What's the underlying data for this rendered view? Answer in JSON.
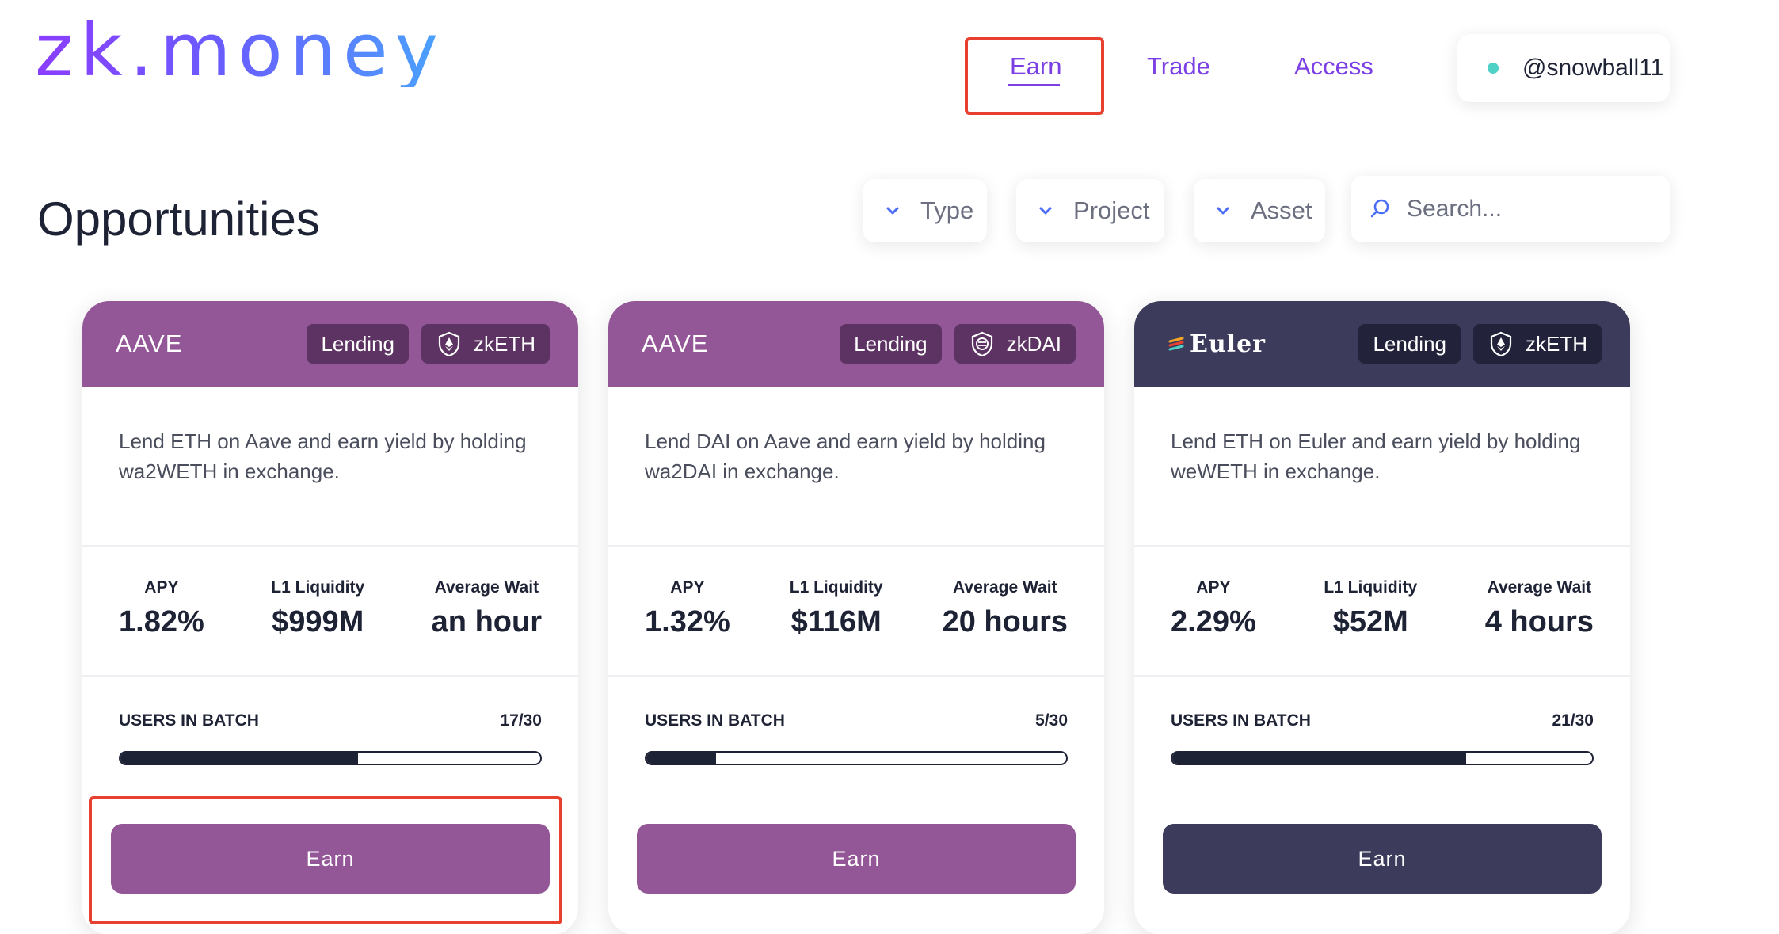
{
  "header": {
    "logo": "zk.money",
    "nav": [
      {
        "label": "Earn",
        "active": true
      },
      {
        "label": "Trade",
        "active": false
      },
      {
        "label": "Access",
        "active": false
      }
    ],
    "user": {
      "name": "@snowball11",
      "status_color": "#4fd1c5"
    }
  },
  "page": {
    "title": "Opportunities",
    "filters": [
      "Type",
      "Project",
      "Asset"
    ],
    "search_placeholder": "Search..."
  },
  "colors": {
    "accent": "#7b3fe4",
    "aave": "#935697",
    "euler": "#3c3b5b",
    "tag_bg": "#3a2540",
    "highlight": "#e8402e"
  },
  "cards": [
    {
      "brand": "AAVE",
      "brand_icon": "aave-logo",
      "type_tag": "Lending",
      "asset_tag": "zkETH",
      "asset_icon": "eth-shield-icon",
      "description": "Lend ETH on Aave and earn yield by holding wa2WETH in exchange.",
      "stats": [
        {
          "label": "APY",
          "value": "1.82%"
        },
        {
          "label": "L1 Liquidity",
          "value": "$999M"
        },
        {
          "label": "Average Wait",
          "value": "an hour"
        }
      ],
      "batch_label": "USERS IN BATCH",
      "batch_count": "17/30",
      "batch_fill": 0.5667,
      "button": "Earn"
    },
    {
      "brand": "AAVE",
      "brand_icon": "aave-logo",
      "type_tag": "Lending",
      "asset_tag": "zkDAI",
      "asset_icon": "dai-shield-icon",
      "description": "Lend DAI on Aave and earn yield by holding wa2DAI in exchange.",
      "stats": [
        {
          "label": "APY",
          "value": "1.32%"
        },
        {
          "label": "L1 Liquidity",
          "value": "$116M"
        },
        {
          "label": "Average Wait",
          "value": "20 hours"
        }
      ],
      "batch_label": "USERS IN BATCH",
      "batch_count": "5/30",
      "batch_fill": 0.1667,
      "button": "Earn"
    },
    {
      "brand": "Euler",
      "brand_icon": "euler-logo",
      "type_tag": "Lending",
      "asset_tag": "zkETH",
      "asset_icon": "eth-shield-icon",
      "description": "Lend ETH on Euler and earn yield by holding weWETH in exchange.",
      "stats": [
        {
          "label": "APY",
          "value": "2.29%"
        },
        {
          "label": "L1 Liquidity",
          "value": "$52M"
        },
        {
          "label": "Average Wait",
          "value": "4 hours"
        }
      ],
      "batch_label": "USERS IN BATCH",
      "batch_count": "21/30",
      "batch_fill": 0.7,
      "button": "Earn"
    }
  ]
}
